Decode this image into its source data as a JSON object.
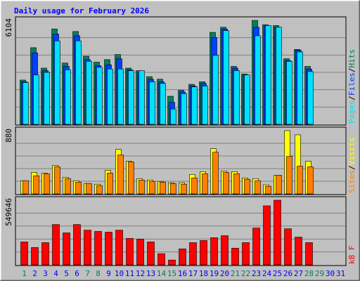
{
  "chart_data": [
    {
      "type": "bar",
      "title": "Daily usage for February 2026",
      "ylim": [
        0,
        6104
      ],
      "yticks": [
        6104
      ],
      "grid_divisions": 6,
      "legend_separator": "/",
      "series": [
        {
          "name": "Hits",
          "color": "#00805c",
          "values": [
            2600,
            4500,
            3300,
            5600,
            3600,
            5450,
            4000,
            3650,
            3800,
            4100,
            3300,
            3150,
            2800,
            2650,
            1650,
            2000,
            2350,
            2500,
            5400,
            5700,
            3400,
            2950,
            6104,
            5850,
            5800,
            3850,
            4400,
            3400,
            null,
            null,
            null
          ]
        },
        {
          "name": "Files",
          "color": "#0040ff",
          "values": [
            2500,
            4200,
            3150,
            5300,
            3400,
            5200,
            3800,
            3450,
            3500,
            3850,
            3200,
            3050,
            2650,
            2500,
            1300,
            1900,
            2250,
            2400,
            5100,
            5600,
            3300,
            2900,
            5700,
            5800,
            5700,
            3750,
            4350,
            3250,
            null,
            null,
            null
          ]
        },
        {
          "name": "Pages",
          "color": "#00e0ff",
          "values": [
            2450,
            2900,
            3050,
            4900,
            3200,
            4900,
            3700,
            3350,
            3250,
            3250,
            3150,
            3150,
            2500,
            2400,
            900,
            1800,
            2200,
            2250,
            4050,
            5500,
            3150,
            2900,
            5200,
            5800,
            5700,
            3700,
            4250,
            3100,
            null,
            null,
            null
          ]
        }
      ]
    },
    {
      "type": "bar",
      "ylim": [
        0,
        880
      ],
      "yticks": [
        880
      ],
      "grid_divisions": 5,
      "legend_separator": "/",
      "series": [
        {
          "name": "Visits",
          "color": "#ffff00",
          "values": [
            184,
            300,
            290,
            396,
            232,
            184,
            145,
            135,
            329,
            619,
            455,
            213,
            193,
            174,
            155,
            155,
            271,
            310,
            629,
            319,
            310,
            222,
            213,
            126,
            261,
            880,
            822,
            455,
            null,
            null,
            null
          ]
        },
        {
          "name": "Sites",
          "color": "#ff8000",
          "values": [
            184,
            252,
            280,
            377,
            213,
            164,
            145,
            116,
            290,
            542,
            445,
            193,
            174,
            164,
            145,
            135,
            222,
            280,
            580,
            300,
            280,
            203,
            184,
            106,
            261,
            522,
            387,
            377,
            null,
            null,
            null
          ]
        }
      ]
    },
    {
      "type": "bar",
      "ylim": [
        0,
        549646
      ],
      "yticks": [
        549646
      ],
      "grid_divisions": 5,
      "categories": [
        "1",
        "2",
        "3",
        "4",
        "5",
        "6",
        "7",
        "8",
        "9",
        "10",
        "11",
        "12",
        "13",
        "14",
        "15",
        "16",
        "17",
        "18",
        "19",
        "20",
        "21",
        "22",
        "23",
        "24",
        "25",
        "26",
        "27",
        "28",
        "29",
        "30",
        "31"
      ],
      "category_colors": [
        "#00805c",
        "#0000ff",
        "#0000ff",
        "#0000ff",
        "#0000ff",
        "#0000ff",
        "#00805c",
        "#00805c",
        "#0000ff",
        "#0000ff",
        "#0000ff",
        "#0000ff",
        "#0000ff",
        "#00805c",
        "#00805c",
        "#0000ff",
        "#0000ff",
        "#0000ff",
        "#0000ff",
        "#0000ff",
        "#00805c",
        "#00805c",
        "#0000ff",
        "#0000ff",
        "#0000ff",
        "#0000ff",
        "#0000ff",
        "#00805c",
        "#00805c",
        "#0000ff",
        "#0000ff"
      ],
      "series": [
        {
          "name": "kB F",
          "color": "#ff0000",
          "values": [
            195000,
            148000,
            189000,
            343000,
            272000,
            343000,
            295000,
            284000,
            278000,
            295000,
            225000,
            219000,
            195000,
            95000,
            41000,
            136000,
            189000,
            207000,
            231000,
            248000,
            142000,
            189000,
            313000,
            502000,
            549646,
            307000,
            236000,
            189000,
            null,
            null,
            null
          ]
        }
      ]
    }
  ]
}
